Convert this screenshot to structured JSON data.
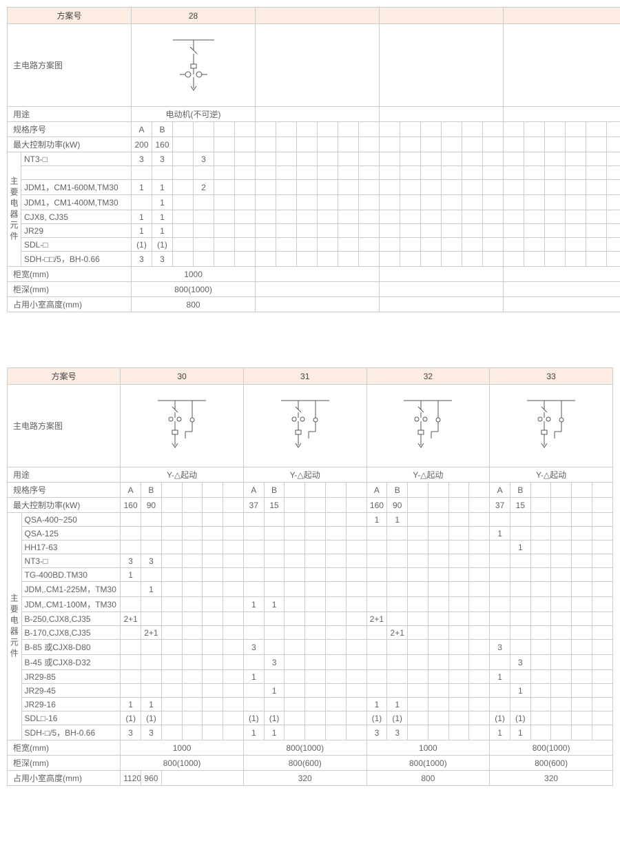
{
  "colors": {
    "header_bg": "#fcece1",
    "border": "#cccccc",
    "text": "#626262"
  },
  "labels": {
    "scheme_no": "方案号",
    "diagram": "主电路方案图",
    "usage": "用途",
    "spec_no": "规格序号",
    "max_power": "最大控制功率(kW)",
    "components": "主要电器元件",
    "width": "柜宽(mm)",
    "depth": "柜深(mm)",
    "height": "占用小室高度(mm)"
  },
  "t1": {
    "scheme": "28",
    "usage": "电动机(不可逆)",
    "specs": [
      "A",
      "B"
    ],
    "power": [
      "200",
      "160"
    ],
    "comp_rows": [
      {
        "name": "NT3-□",
        "v": [
          "3",
          "3",
          "",
          "3",
          "",
          "",
          "",
          "",
          ""
        ]
      },
      {
        "name": "",
        "v": [
          "",
          "",
          "",
          "",
          "",
          "",
          "",
          "",
          ""
        ]
      },
      {
        "name": "JDM1，CM1-600M,TM30",
        "v": [
          "1",
          "1",
          "",
          "2",
          "",
          "",
          "",
          "",
          ""
        ]
      },
      {
        "name": "JDM1，CM1-400M,TM30",
        "v": [
          "",
          "1",
          "",
          "",
          "",
          "",
          "",
          "",
          ""
        ]
      },
      {
        "name": "CJX8, CJ35",
        "v": [
          "1",
          "1",
          "",
          "",
          "",
          "",
          "",
          "",
          ""
        ]
      },
      {
        "name": "JR29",
        "v": [
          "1",
          "1",
          "",
          "",
          "",
          "",
          "",
          "",
          ""
        ]
      },
      {
        "name": "SDL-□",
        "v": [
          "(1)",
          "(1)",
          "",
          "",
          "",
          "",
          "",
          "",
          ""
        ]
      },
      {
        "name": "SDH-□□/5，BH-0.66",
        "v": [
          "3",
          "3",
          "",
          "",
          "",
          "",
          "",
          "",
          ""
        ]
      }
    ],
    "width": "1000",
    "depth": "800(1000)",
    "height": "800"
  },
  "t2": {
    "schemes": [
      "30",
      "31",
      "32",
      "33"
    ],
    "usage": "Y-△起动",
    "specs": [
      "A",
      "B"
    ],
    "power": [
      [
        "160",
        "90"
      ],
      [
        "37",
        "15"
      ],
      [
        "160",
        "90"
      ],
      [
        "37",
        "15"
      ]
    ],
    "comp_rows": [
      {
        "name": "QSA-400~250",
        "v": [
          [
            "",
            "",
            ""
          ],
          [
            "",
            "",
            ""
          ],
          [
            "1",
            "1",
            ""
          ],
          [
            "",
            "",
            ""
          ]
        ]
      },
      {
        "name": "QSA-125",
        "v": [
          [
            "",
            "",
            ""
          ],
          [
            "",
            "",
            ""
          ],
          [
            "",
            "",
            ""
          ],
          [
            "1",
            "",
            ""
          ]
        ]
      },
      {
        "name": "HH17-63",
        "v": [
          [
            "",
            "",
            ""
          ],
          [
            "",
            "",
            ""
          ],
          [
            "",
            "",
            ""
          ],
          [
            "",
            "1",
            ""
          ]
        ]
      },
      {
        "name": "NT3-□",
        "v": [
          [
            "3",
            "3",
            ""
          ],
          [
            "",
            "",
            ""
          ],
          [
            "",
            "",
            ""
          ],
          [
            "",
            "",
            ""
          ]
        ]
      },
      {
        "name": "TG-400BD.TM30",
        "v": [
          [
            "1",
            "",
            ""
          ],
          [
            "",
            "",
            ""
          ],
          [
            "",
            "",
            ""
          ],
          [
            "",
            "",
            ""
          ]
        ]
      },
      {
        "name": "JDM,.CM1-225M，TM30",
        "v": [
          [
            "",
            "1",
            ""
          ],
          [
            "",
            "",
            ""
          ],
          [
            "",
            "",
            ""
          ],
          [
            "",
            "",
            ""
          ]
        ]
      },
      {
        "name": "JDM,.CM1-100M，TM30",
        "v": [
          [
            "",
            "",
            ""
          ],
          [
            "1",
            "1",
            ""
          ],
          [
            "",
            "",
            ""
          ],
          [
            "",
            "",
            ""
          ]
        ]
      },
      {
        "name": "B-250,CJX8,CJ35",
        "v": [
          [
            "2+1",
            "",
            ""
          ],
          [
            "",
            "",
            ""
          ],
          [
            "2+1",
            "",
            ""
          ],
          [
            "",
            "",
            ""
          ]
        ]
      },
      {
        "name": "B-170,CJX8,CJ35",
        "v": [
          [
            "",
            "2+1",
            ""
          ],
          [
            "",
            "",
            ""
          ],
          [
            "",
            "2+1",
            ""
          ],
          [
            "",
            "",
            ""
          ]
        ]
      },
      {
        "name": "B-85 或CJX8-D80",
        "v": [
          [
            "",
            "",
            ""
          ],
          [
            "3",
            "",
            ""
          ],
          [
            "",
            "",
            ""
          ],
          [
            "3",
            "",
            ""
          ]
        ]
      },
      {
        "name": "B-45 或CJX8-D32",
        "v": [
          [
            "",
            "",
            ""
          ],
          [
            "",
            "3",
            ""
          ],
          [
            "",
            "",
            ""
          ],
          [
            "",
            "3",
            ""
          ]
        ]
      },
      {
        "name": "JR29-85",
        "v": [
          [
            "",
            "",
            ""
          ],
          [
            "1",
            "",
            ""
          ],
          [
            "",
            "",
            ""
          ],
          [
            "1",
            "",
            ""
          ]
        ]
      },
      {
        "name": "JR29-45",
        "v": [
          [
            "",
            "",
            ""
          ],
          [
            "",
            "1",
            ""
          ],
          [
            "",
            "",
            ""
          ],
          [
            "",
            "1",
            ""
          ]
        ]
      },
      {
        "name": "JR29-16",
        "v": [
          [
            "1",
            "1",
            ""
          ],
          [
            "",
            "",
            ""
          ],
          [
            "1",
            "1",
            ""
          ],
          [
            "",
            "",
            ""
          ]
        ]
      },
      {
        "name": "SDL□-16",
        "v": [
          [
            "(1)",
            "(1)",
            ""
          ],
          [
            "(1)",
            "(1)",
            ""
          ],
          [
            "(1)",
            "(1)",
            ""
          ],
          [
            "(1)",
            "(1)",
            ""
          ]
        ]
      },
      {
        "name": "SDH-□/5，BH-0.66",
        "v": [
          [
            "3",
            "3",
            ""
          ],
          [
            "1",
            "1",
            ""
          ],
          [
            "3",
            "3",
            ""
          ],
          [
            "1",
            "1",
            ""
          ]
        ]
      }
    ],
    "width": [
      "1000",
      "800(1000)",
      "1000",
      "800(1000)"
    ],
    "depth": [
      "800(1000)",
      "800(600)",
      "800(1000)",
      "800(600)"
    ],
    "height": [
      [
        "1120",
        "960"
      ],
      [
        "320",
        ""
      ],
      [
        "800",
        ""
      ],
      [
        "320",
        ""
      ]
    ]
  }
}
